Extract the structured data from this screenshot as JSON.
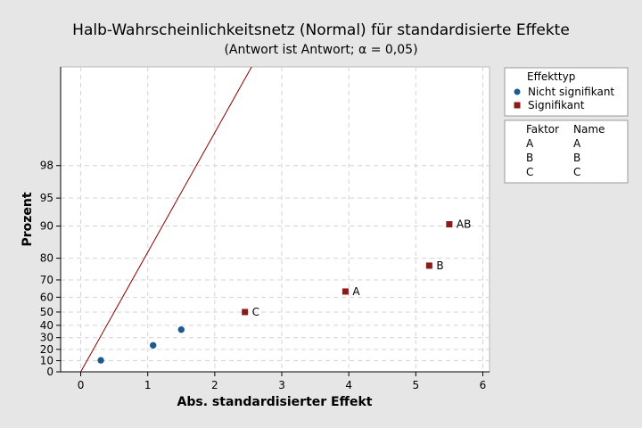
{
  "chart_data": {
    "type": "scatter",
    "title": "Halb-Wahrscheinlichkeitsnetz (Normal) für standardisierte Effekte",
    "subtitle": "(Antwort ist Antwort; α = 0,05)",
    "xlabel": "Abs. standardisierter Effekt",
    "ylabel": "Prozent",
    "xlim": [
      -0.3,
      6.1
    ],
    "x_ticks": [
      "0",
      "1",
      "2",
      "3",
      "4",
      "5",
      "6"
    ],
    "y_ticks": [
      "0",
      "10",
      "20",
      "30",
      "40",
      "50",
      "60",
      "70",
      "80",
      "90",
      "95",
      "98"
    ],
    "y_scale": "half-normal probability",
    "grid": true,
    "legend_position": "right",
    "reference_line": {
      "from": [
        0,
        0
      ],
      "to": [
        2.58,
        99.95
      ],
      "color": "#8b0000"
    },
    "series": [
      {
        "name": "Nicht signifikant",
        "marker": "circle",
        "color": "#1f5a8c",
        "points": [
          {
            "x": 0.3,
            "y": 10.3,
            "label": ""
          },
          {
            "x": 1.08,
            "y": 23.5,
            "label": ""
          },
          {
            "x": 1.5,
            "y": 36.6,
            "label": ""
          }
        ]
      },
      {
        "name": "Signifikant",
        "marker": "square",
        "color": "#8b1a1a",
        "points": [
          {
            "x": 2.45,
            "y": 50.0,
            "label": "C"
          },
          {
            "x": 3.95,
            "y": 63.5,
            "label": "A"
          },
          {
            "x": 5.2,
            "y": 76.9,
            "label": "B"
          },
          {
            "x": 5.5,
            "y": 90.4,
            "label": "AB"
          }
        ]
      }
    ],
    "legend": {
      "title": "Effekttyp",
      "items": [
        "Nicht signifikant",
        "Signifikant"
      ]
    },
    "factor_table": {
      "headers": [
        "Faktor",
        "Name"
      ],
      "rows": [
        [
          "A",
          "A"
        ],
        [
          "B",
          "B"
        ],
        [
          "C",
          "C"
        ]
      ]
    }
  }
}
